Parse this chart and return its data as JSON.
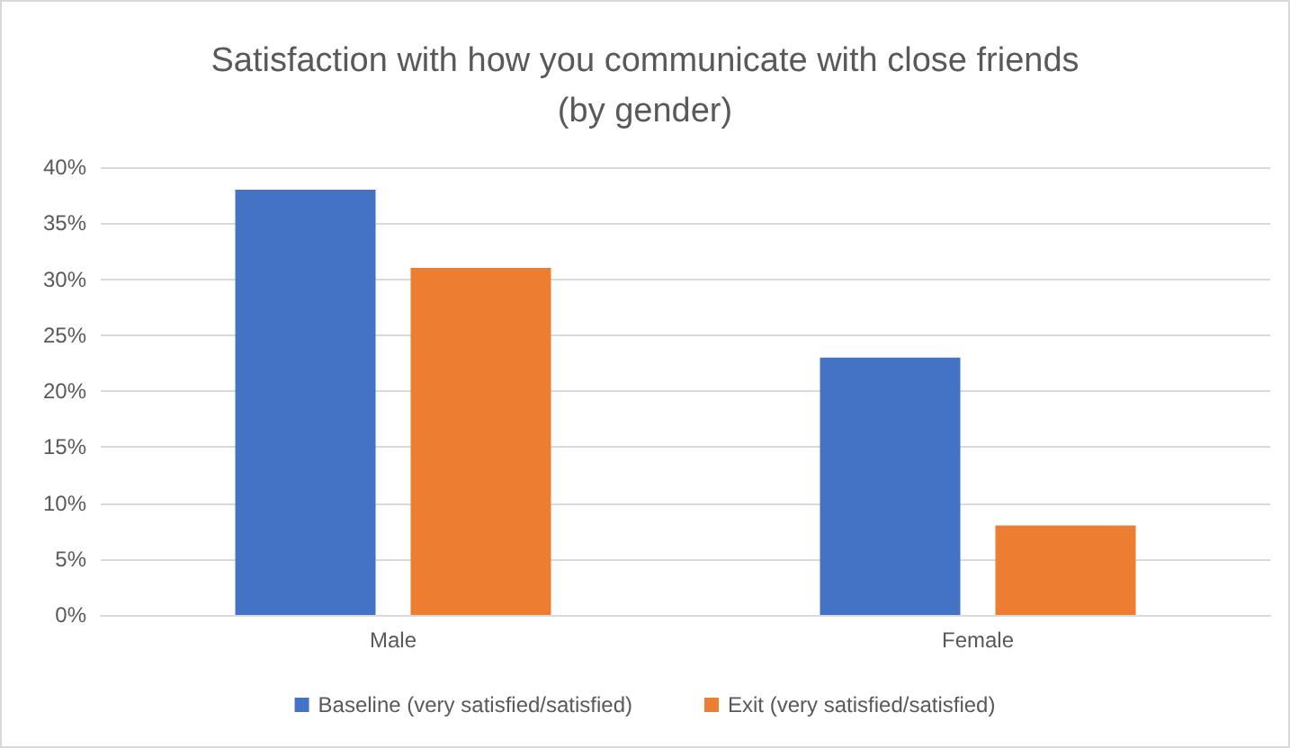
{
  "chart_data": {
    "type": "bar",
    "title": "Satisfaction with how you communicate with close friends\n(by gender)",
    "categories": [
      "Male",
      "Female"
    ],
    "series": [
      {
        "name": "Baseline (very satisfied/satisfied)",
        "color": "#4472c4",
        "values": [
          38,
          23
        ]
      },
      {
        "name": "Exit (very satisfied/satisfied)",
        "color": "#ed7d31",
        "values": [
          31,
          8
        ]
      }
    ],
    "ylim": [
      0,
      40
    ],
    "yticks": [
      {
        "value": 0,
        "label": "0%"
      },
      {
        "value": 5,
        "label": "5%"
      },
      {
        "value": 10,
        "label": "10%"
      },
      {
        "value": 15,
        "label": "15%"
      },
      {
        "value": 20,
        "label": "20%"
      },
      {
        "value": 25,
        "label": "25%"
      },
      {
        "value": 30,
        "label": "30%"
      },
      {
        "value": 35,
        "label": "35%"
      },
      {
        "value": 40,
        "label": "40%"
      }
    ],
    "grid": "y",
    "legend": "bottom"
  }
}
